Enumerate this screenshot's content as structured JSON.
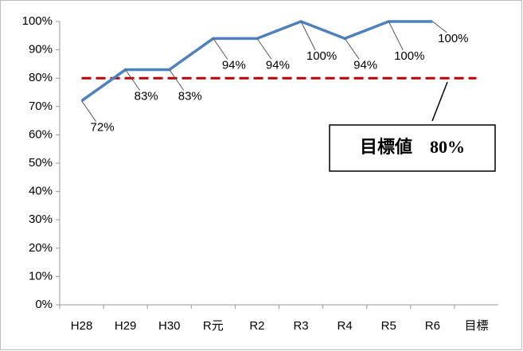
{
  "chart_data": {
    "type": "line",
    "categories": [
      "H28",
      "H29",
      "H30",
      "R元",
      "R2",
      "R3",
      "R4",
      "R5",
      "R6",
      "目標"
    ],
    "series": [
      {
        "color": "#4f81bd",
        "values": [
          72,
          83,
          83,
          94,
          94,
          100,
          94,
          100,
          100,
          null
        ],
        "value_labels": [
          "72%",
          "83%",
          "83%",
          "94%",
          "94%",
          "100%",
          "94%",
          "100%",
          "100%",
          null
        ]
      }
    ],
    "target": {
      "value": 80,
      "label": "目標値　80%",
      "color": "#c00000"
    },
    "ylim": [
      0,
      100
    ],
    "yticks": [
      {
        "value": 0,
        "label": "0%"
      },
      {
        "value": 10,
        "label": "10%"
      },
      {
        "value": 20,
        "label": "20%"
      },
      {
        "value": 30,
        "label": "30%"
      },
      {
        "value": 40,
        "label": "40%"
      },
      {
        "value": 50,
        "label": "50%"
      },
      {
        "value": 60,
        "label": "60%"
      },
      {
        "value": 70,
        "label": "70%"
      },
      {
        "value": 80,
        "label": "80%"
      },
      {
        "value": 90,
        "label": "90%"
      },
      {
        "value": 100,
        "label": "100%"
      }
    ],
    "grid": false
  }
}
